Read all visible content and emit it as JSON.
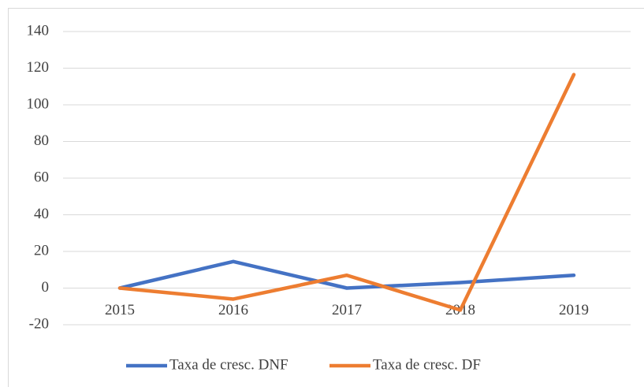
{
  "chart_data": {
    "type": "line",
    "categories": [
      "2015",
      "2016",
      "2017",
      "2018",
      "2019"
    ],
    "series": [
      {
        "name": "Taxa de cresc. DNF",
        "color": "#4472c4",
        "values": [
          0,
          14.5,
          0,
          3,
          7
        ]
      },
      {
        "name": "Taxa de cresc. DF",
        "color": "#ed7d31",
        "values": [
          0,
          -6,
          7,
          -12,
          116.5
        ]
      }
    ],
    "ylim": [
      -20,
      140
    ],
    "yticks": [
      -20,
      0,
      20,
      40,
      60,
      80,
      100,
      120,
      140
    ],
    "grid": true,
    "legend": "bottom"
  }
}
